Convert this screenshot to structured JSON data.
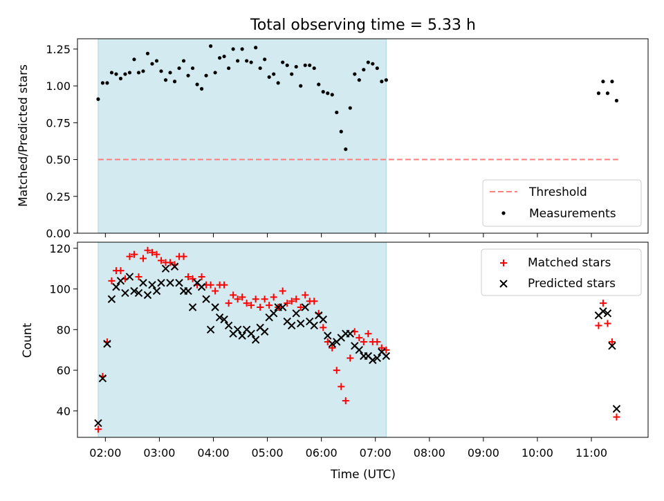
{
  "figure": {
    "title": "Total observing time = 5.33 h"
  },
  "chart_data": [
    {
      "type": "scatter",
      "title": "Total observing time = 5.33 h",
      "xlabel": "",
      "ylabel": "Matched/Predicted stars",
      "xlim": [
        "01:29",
        "12:03"
      ],
      "ylim": [
        0,
        1.32
      ],
      "y_ticks": [
        "0.00",
        "0.25",
        "0.50",
        "0.75",
        "1.00",
        "1.25"
      ],
      "shaded_span": {
        "from": "01:52",
        "to": "07:12",
        "color": "#d3eaf0"
      },
      "threshold": {
        "name": "Threshold",
        "y": 0.5,
        "from": "01:52",
        "to": "11:30",
        "color": "#ff7f7f",
        "style": "dashed"
      },
      "legend": {
        "position": "lower right",
        "entries": [
          "Threshold",
          "Measurements"
        ]
      },
      "series": [
        {
          "name": "Measurements",
          "color": "#000000",
          "marker": "dot",
          "points": [
            [
              "01:52",
              0.91
            ],
            [
              "01:57",
              1.02
            ],
            [
              "02:02",
              1.02
            ],
            [
              "02:07",
              1.09
            ],
            [
              "02:12",
              1.08
            ],
            [
              "02:17",
              1.05
            ],
            [
              "02:22",
              1.08
            ],
            [
              "02:27",
              1.09
            ],
            [
              "02:32",
              1.18
            ],
            [
              "02:37",
              1.09
            ],
            [
              "02:42",
              1.1
            ],
            [
              "02:47",
              1.22
            ],
            [
              "02:52",
              1.15
            ],
            [
              "02:57",
              1.17
            ],
            [
              "03:02",
              1.1
            ],
            [
              "03:07",
              1.04
            ],
            [
              "03:12",
              1.09
            ],
            [
              "03:17",
              1.03
            ],
            [
              "03:22",
              1.12
            ],
            [
              "03:27",
              1.17
            ],
            [
              "03:32",
              1.07
            ],
            [
              "03:37",
              1.12
            ],
            [
              "03:42",
              1.01
            ],
            [
              "03:47",
              0.98
            ],
            [
              "03:52",
              1.07
            ],
            [
              "03:57",
              1.27
            ],
            [
              "04:02",
              1.09
            ],
            [
              "04:07",
              1.19
            ],
            [
              "04:12",
              1.2
            ],
            [
              "04:17",
              1.12
            ],
            [
              "04:22",
              1.25
            ],
            [
              "04:27",
              1.17
            ],
            [
              "04:32",
              1.25
            ],
            [
              "04:37",
              1.17
            ],
            [
              "04:42",
              1.16
            ],
            [
              "04:47",
              1.26
            ],
            [
              "04:52",
              1.12
            ],
            [
              "04:57",
              1.18
            ],
            [
              "05:02",
              1.06
            ],
            [
              "05:07",
              1.08
            ],
            [
              "05:12",
              1.02
            ],
            [
              "05:17",
              1.16
            ],
            [
              "05:22",
              1.14
            ],
            [
              "05:27",
              1.08
            ],
            [
              "05:32",
              1.13
            ],
            [
              "05:37",
              1.0
            ],
            [
              "05:42",
              1.14
            ],
            [
              "05:47",
              1.14
            ],
            [
              "05:52",
              1.12
            ],
            [
              "05:57",
              1.01
            ],
            [
              "06:02",
              0.96
            ],
            [
              "06:07",
              0.95
            ],
            [
              "06:12",
              0.94
            ],
            [
              "06:17",
              0.82
            ],
            [
              "06:22",
              0.69
            ],
            [
              "06:27",
              0.57
            ],
            [
              "06:32",
              0.85
            ],
            [
              "06:37",
              1.08
            ],
            [
              "06:42",
              1.04
            ],
            [
              "06:47",
              1.11
            ],
            [
              "06:52",
              1.16
            ],
            [
              "06:57",
              1.15
            ],
            [
              "07:02",
              1.12
            ],
            [
              "07:07",
              1.03
            ],
            [
              "07:12",
              1.04
            ],
            [
              "11:08",
              0.95
            ],
            [
              "11:13",
              1.03
            ],
            [
              "11:18",
              0.95
            ],
            [
              "11:23",
              1.03
            ],
            [
              "11:28",
              0.9
            ]
          ]
        }
      ]
    },
    {
      "type": "scatter",
      "xlabel": "Time (UTC)",
      "ylabel": "Count",
      "xlim": [
        "01:29",
        "12:03"
      ],
      "ylim": [
        27,
        123
      ],
      "x_ticks": [
        "02:00",
        "03:00",
        "04:00",
        "05:00",
        "06:00",
        "07:00",
        "08:00",
        "09:00",
        "10:00",
        "11:00"
      ],
      "y_ticks": [
        "40",
        "60",
        "80",
        "100",
        "120"
      ],
      "shaded_span": {
        "from": "01:52",
        "to": "07:12",
        "color": "#d3eaf0"
      },
      "legend": {
        "position": "upper right",
        "entries": [
          "Matched stars",
          "Predicted stars"
        ]
      },
      "series": [
        {
          "name": "Matched stars",
          "color": "#ff0000",
          "marker": "plus",
          "points": [
            [
              "01:52",
              31
            ],
            [
              "01:57",
              57
            ],
            [
              "02:02",
              74
            ],
            [
              "02:07",
              104
            ],
            [
              "02:12",
              109
            ],
            [
              "02:17",
              109
            ],
            [
              "02:22",
              105
            ],
            [
              "02:27",
              116
            ],
            [
              "02:32",
              117
            ],
            [
              "02:37",
              106
            ],
            [
              "02:42",
              115
            ],
            [
              "02:47",
              119
            ],
            [
              "02:52",
              118
            ],
            [
              "02:57",
              117
            ],
            [
              "03:02",
              114
            ],
            [
              "03:07",
              113
            ],
            [
              "03:12",
              113
            ],
            [
              "03:17",
              112
            ],
            [
              "03:22",
              116
            ],
            [
              "03:27",
              116
            ],
            [
              "03:32",
              106
            ],
            [
              "03:37",
              105
            ],
            [
              "03:42",
              102
            ],
            [
              "03:47",
              106
            ],
            [
              "03:52",
              102
            ],
            [
              "03:57",
              102
            ],
            [
              "04:02",
              99
            ],
            [
              "04:07",
              102
            ],
            [
              "04:12",
              102
            ],
            [
              "04:17",
              93
            ],
            [
              "04:22",
              97
            ],
            [
              "04:27",
              95
            ],
            [
              "04:32",
              96
            ],
            [
              "04:37",
              93
            ],
            [
              "04:42",
              92
            ],
            [
              "04:47",
              95
            ],
            [
              "04:52",
              91
            ],
            [
              "04:57",
              95
            ],
            [
              "05:02",
              92
            ],
            [
              "05:07",
              96
            ],
            [
              "05:12",
              91
            ],
            [
              "05:17",
              99
            ],
            [
              "05:22",
              93
            ],
            [
              "05:27",
              94
            ],
            [
              "05:32",
              95
            ],
            [
              "05:37",
              91
            ],
            [
              "05:42",
              97
            ],
            [
              "05:47",
              94
            ],
            [
              "05:52",
              94
            ],
            [
              "05:57",
              88
            ],
            [
              "06:02",
              81
            ],
            [
              "06:07",
              74
            ],
            [
              "06:12",
              71
            ],
            [
              "06:17",
              60
            ],
            [
              "06:22",
              52
            ],
            [
              "06:27",
              45
            ],
            [
              "06:32",
              66
            ],
            [
              "06:37",
              79
            ],
            [
              "06:42",
              76
            ],
            [
              "06:47",
              74
            ],
            [
              "06:52",
              78
            ],
            [
              "06:57",
              74
            ],
            [
              "07:02",
              74
            ],
            [
              "07:07",
              71
            ],
            [
              "07:12",
              70
            ],
            [
              "11:08",
              82
            ],
            [
              "11:13",
              93
            ],
            [
              "11:18",
              83
            ],
            [
              "11:23",
              74
            ],
            [
              "11:28",
              37
            ]
          ]
        },
        {
          "name": "Predicted stars",
          "color": "#000000",
          "marker": "x",
          "points": [
            [
              "01:52",
              34
            ],
            [
              "01:57",
              56
            ],
            [
              "02:02",
              73
            ],
            [
              "02:07",
              95
            ],
            [
              "02:12",
              101
            ],
            [
              "02:17",
              104
            ],
            [
              "02:22",
              98
            ],
            [
              "02:27",
              106
            ],
            [
              "02:32",
              99
            ],
            [
              "02:37",
              98
            ],
            [
              "02:42",
              103
            ],
            [
              "02:47",
              97
            ],
            [
              "02:52",
              102
            ],
            [
              "02:57",
              99
            ],
            [
              "03:02",
              103
            ],
            [
              "03:07",
              110
            ],
            [
              "03:12",
              103
            ],
            [
              "03:17",
              111
            ],
            [
              "03:22",
              103
            ],
            [
              "03:27",
              99
            ],
            [
              "03:32",
              99
            ],
            [
              "03:37",
              91
            ],
            [
              "03:42",
              103
            ],
            [
              "03:47",
              101
            ],
            [
              "03:52",
              95
            ],
            [
              "03:57",
              80
            ],
            [
              "04:02",
              91
            ],
            [
              "04:07",
              86
            ],
            [
              "04:12",
              85
            ],
            [
              "04:17",
              82
            ],
            [
              "04:22",
              78
            ],
            [
              "04:27",
              80
            ],
            [
              "04:32",
              77
            ],
            [
              "04:37",
              80
            ],
            [
              "04:42",
              78
            ],
            [
              "04:47",
              75
            ],
            [
              "04:52",
              81
            ],
            [
              "04:57",
              79
            ],
            [
              "05:02",
              86
            ],
            [
              "05:07",
              88
            ],
            [
              "05:12",
              91
            ],
            [
              "05:17",
              91
            ],
            [
              "05:22",
              84
            ],
            [
              "05:27",
              82
            ],
            [
              "05:32",
              88
            ],
            [
              "05:37",
              83
            ],
            [
              "05:42",
              91
            ],
            [
              "05:47",
              84
            ],
            [
              "05:52",
              82
            ],
            [
              "05:57",
              87
            ],
            [
              "06:02",
              85
            ],
            [
              "06:07",
              77
            ],
            [
              "06:12",
              73
            ],
            [
              "06:17",
              74
            ],
            [
              "06:22",
              76
            ],
            [
              "06:27",
              78
            ],
            [
              "06:32",
              78
            ],
            [
              "06:37",
              72
            ],
            [
              "06:42",
              70
            ],
            [
              "06:47",
              67
            ],
            [
              "06:52",
              67
            ],
            [
              "06:57",
              65
            ],
            [
              "07:02",
              66
            ],
            [
              "07:07",
              69
            ],
            [
              "07:12",
              67
            ],
            [
              "11:08",
              87
            ],
            [
              "11:13",
              89
            ],
            [
              "11:18",
              88
            ],
            [
              "11:23",
              72
            ],
            [
              "11:28",
              41
            ]
          ]
        }
      ]
    }
  ]
}
